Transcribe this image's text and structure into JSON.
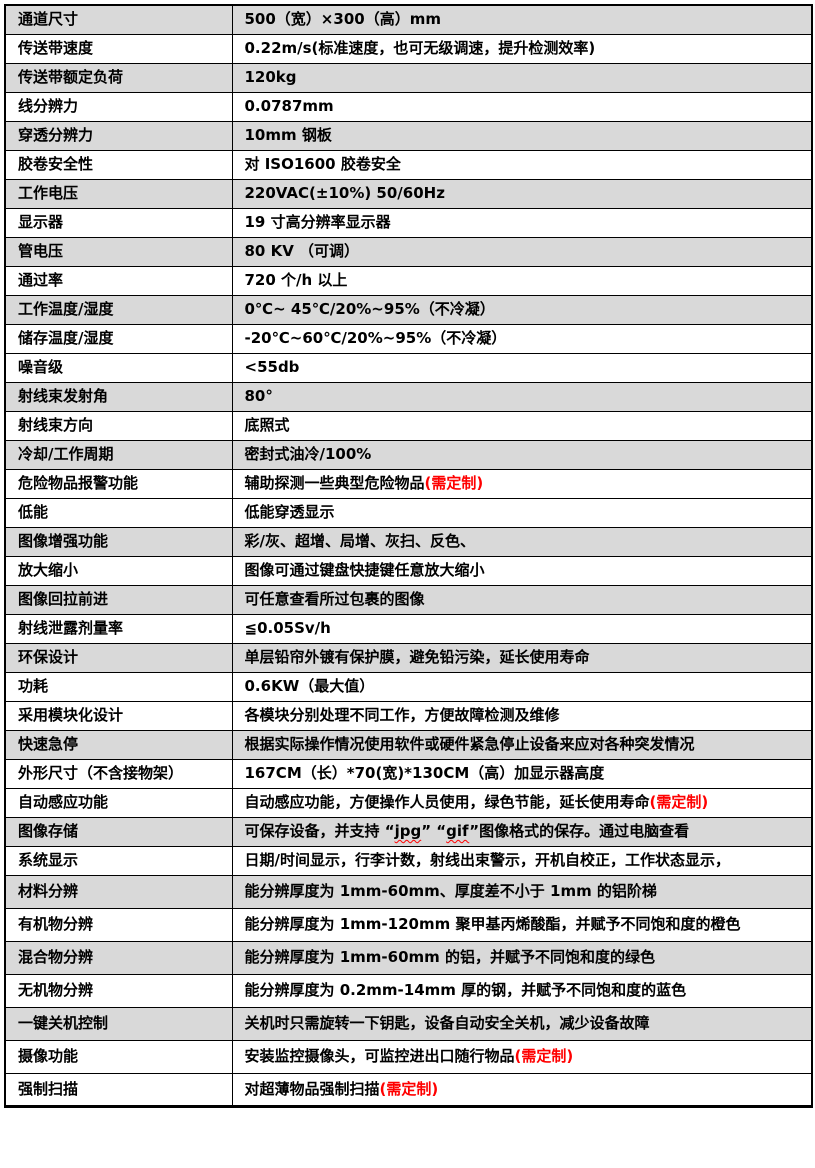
{
  "colors": {
    "row_shading": "#d9d9d9",
    "border": "#000000",
    "text": "#000000",
    "highlight_red": "#ff0000"
  },
  "table": {
    "rows": [
      {
        "label": "通道尺寸",
        "shaded": true,
        "value": [
          {
            "t": "500（宽）×300（高）mm"
          }
        ]
      },
      {
        "label": "传送带速度",
        "shaded": false,
        "value": [
          {
            "t": "0.22m/s(标准速度，也可无级调速，提升检测效率)"
          }
        ]
      },
      {
        "label": "传送带额定负荷",
        "shaded": true,
        "value": [
          {
            "t": "120kg"
          }
        ]
      },
      {
        "label": "线分辨力",
        "shaded": false,
        "value": [
          {
            "t": "0.0787mm"
          }
        ]
      },
      {
        "label": "穿透分辨力",
        "shaded": true,
        "value": [
          {
            "t": "10mm 钢板"
          }
        ]
      },
      {
        "label": "胶卷安全性",
        "shaded": false,
        "value": [
          {
            "t": "对 ISO1600 胶卷安全"
          }
        ]
      },
      {
        "label": "工作电压",
        "shaded": true,
        "value": [
          {
            "t": "220VAC(±10%)  50/60Hz"
          }
        ]
      },
      {
        "label": "显示器",
        "shaded": false,
        "value": [
          {
            "t": "19 寸高分辨率显示器"
          }
        ]
      },
      {
        "label": "管电压",
        "shaded": true,
        "value": [
          {
            "t": "80 KV （可调）"
          }
        ]
      },
      {
        "label": "通过率",
        "shaded": false,
        "value": [
          {
            "t": "720 个/h 以上"
          }
        ]
      },
      {
        "label": "工作温度/湿度",
        "shaded": true,
        "value": [
          {
            "t": "0℃~ 45℃/20%~95%（不冷凝）"
          }
        ]
      },
      {
        "label": "储存温度/湿度",
        "shaded": false,
        "value": [
          {
            "t": "-20℃~60℃/20%~95%（不冷凝）"
          }
        ]
      },
      {
        "label": "噪音级",
        "shaded": false,
        "value": [
          {
            "t": "<55db"
          }
        ]
      },
      {
        "label": "射线束发射角",
        "shaded": true,
        "value": [
          {
            "t": "80°"
          }
        ]
      },
      {
        "label": "射线束方向",
        "shaded": false,
        "value": [
          {
            "t": "底照式"
          }
        ]
      },
      {
        "label": "冷却/工作周期",
        "shaded": true,
        "value": [
          {
            "t": "密封式油冷/100%"
          }
        ]
      },
      {
        "label": "危险物品报警功能",
        "shaded": false,
        "value": [
          {
            "t": "辅助探测一些典型危险物品"
          },
          {
            "t": "(需定制)",
            "c": "red"
          }
        ]
      },
      {
        "label": "低能",
        "shaded": false,
        "value": [
          {
            "t": "低能穿透显示"
          }
        ]
      },
      {
        "label": "图像增强功能",
        "shaded": true,
        "value": [
          {
            "t": "彩/灰、超增、局增、灰扫、反色、"
          }
        ]
      },
      {
        "label": "放大缩小",
        "shaded": false,
        "value": [
          {
            "t": "图像可通过键盘快捷键任意放大缩小"
          }
        ]
      },
      {
        "label": "图像回拉前进",
        "shaded": true,
        "value": [
          {
            "t": "可任意查看所过包裹的图像"
          }
        ]
      },
      {
        "label": "射线泄露剂量率",
        "shaded": false,
        "value": [
          {
            "t": "≦0.05Sv/h"
          }
        ]
      },
      {
        "label": "环保设计",
        "shaded": true,
        "value": [
          {
            "t": "单层铅帘外镀有保护膜，避免铅污染，延长使用寿命"
          }
        ]
      },
      {
        "label": "功耗",
        "shaded": false,
        "value": [
          {
            "t": "0.6KW（最大值）"
          }
        ]
      },
      {
        "label": "采用模块化设计",
        "shaded": false,
        "value": [
          {
            "t": "各模块分别处理不同工作，方便故障检测及维修"
          }
        ]
      },
      {
        "label": "快速急停",
        "shaded": true,
        "value": [
          {
            "t": "根据实际操作情况使用软件或硬件紧急停止设备来应对各种突发情况"
          }
        ]
      },
      {
        "label": "外形尺寸（不含接物架）",
        "shaded": false,
        "value": [
          {
            "t": "167CM（长）*70(宽)*130CM（高）加显示器高度"
          }
        ]
      },
      {
        "label": "自动感应功能",
        "shaded": false,
        "value": [
          {
            "t": "自动感应功能，方便操作人员使用，绿色节能，延长使用寿命"
          },
          {
            "t": "(需定制)",
            "c": "red"
          }
        ]
      },
      {
        "label": "图像存储",
        "shaded": true,
        "value": [
          {
            "t": "可保存设备，并支持 “"
          },
          {
            "t": "jpg",
            "u": true
          },
          {
            "t": "” “"
          },
          {
            "t": "gif",
            "u": true
          },
          {
            "t": "”图像格式的保存。通过电脑查看"
          }
        ]
      },
      {
        "label": "系统显示",
        "shaded": false,
        "value": [
          {
            "t": "日期/时间显示，行李计数，射线出束警示，开机自校正，工作状态显示，"
          }
        ]
      },
      {
        "label": "材料分辨",
        "shaded": true,
        "value": [
          {
            "t": "能分辨厚度为 1mm-60mm、厚度差不小于 1mm 的铝阶梯"
          }
        ]
      },
      {
        "label": "有机物分辨",
        "shaded": false,
        "value": [
          {
            "t": "能分辨厚度为 1mm-120mm 聚甲基丙烯酸酯，并赋予不同饱和度的橙色"
          }
        ]
      },
      {
        "label": "混合物分辨",
        "shaded": true,
        "value": [
          {
            "t": "能分辨厚度为 1mm-60mm 的铝，并赋予不同饱和度的绿色"
          }
        ]
      },
      {
        "label": "无机物分辨",
        "shaded": false,
        "value": [
          {
            "t": "能分辨厚度为 0.2mm-14mm 厚的钢，并赋予不同饱和度的蓝色"
          }
        ]
      },
      {
        "label": "一键关机控制",
        "shaded": true,
        "value": [
          {
            "t": "关机时只需旋转一下钥匙，设备自动安全关机，减少设备故障"
          }
        ]
      },
      {
        "label": "摄像功能",
        "shaded": false,
        "value": [
          {
            "t": "安装监控摄像头，可监控进出口随行物品"
          },
          {
            "t": "(需定制)",
            "c": "red"
          }
        ]
      },
      {
        "label": "强制扫描",
        "shaded": false,
        "value": [
          {
            "t": "对超薄物品强制扫描"
          },
          {
            "t": "(需定制)",
            "c": "red"
          }
        ]
      }
    ]
  }
}
